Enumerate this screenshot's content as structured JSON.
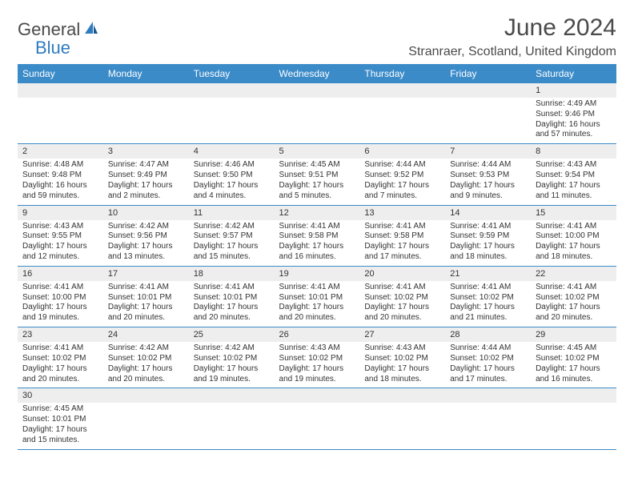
{
  "logo": {
    "text1": "General",
    "text2": "Blue"
  },
  "title": "June 2024",
  "location": "Stranraer, Scotland, United Kingdom",
  "colors": {
    "header_bg": "#3b8bc9",
    "header_fg": "#ffffff",
    "daynum_bg": "#eeeeee",
    "rule": "#3b8bc9",
    "text": "#333333",
    "logo_gray": "#4a4a4a",
    "logo_blue": "#2e7bc0"
  },
  "weekdays": [
    "Sunday",
    "Monday",
    "Tuesday",
    "Wednesday",
    "Thursday",
    "Friday",
    "Saturday"
  ],
  "weeks": [
    [
      null,
      null,
      null,
      null,
      null,
      null,
      {
        "n": "1",
        "sr": "4:49 AM",
        "ss": "9:46 PM",
        "dl": "16 hours and 57 minutes."
      }
    ],
    [
      {
        "n": "2",
        "sr": "4:48 AM",
        "ss": "9:48 PM",
        "dl": "16 hours and 59 minutes."
      },
      {
        "n": "3",
        "sr": "4:47 AM",
        "ss": "9:49 PM",
        "dl": "17 hours and 2 minutes."
      },
      {
        "n": "4",
        "sr": "4:46 AM",
        "ss": "9:50 PM",
        "dl": "17 hours and 4 minutes."
      },
      {
        "n": "5",
        "sr": "4:45 AM",
        "ss": "9:51 PM",
        "dl": "17 hours and 5 minutes."
      },
      {
        "n": "6",
        "sr": "4:44 AM",
        "ss": "9:52 PM",
        "dl": "17 hours and 7 minutes."
      },
      {
        "n": "7",
        "sr": "4:44 AM",
        "ss": "9:53 PM",
        "dl": "17 hours and 9 minutes."
      },
      {
        "n": "8",
        "sr": "4:43 AM",
        "ss": "9:54 PM",
        "dl": "17 hours and 11 minutes."
      }
    ],
    [
      {
        "n": "9",
        "sr": "4:43 AM",
        "ss": "9:55 PM",
        "dl": "17 hours and 12 minutes."
      },
      {
        "n": "10",
        "sr": "4:42 AM",
        "ss": "9:56 PM",
        "dl": "17 hours and 13 minutes."
      },
      {
        "n": "11",
        "sr": "4:42 AM",
        "ss": "9:57 PM",
        "dl": "17 hours and 15 minutes."
      },
      {
        "n": "12",
        "sr": "4:41 AM",
        "ss": "9:58 PM",
        "dl": "17 hours and 16 minutes."
      },
      {
        "n": "13",
        "sr": "4:41 AM",
        "ss": "9:58 PM",
        "dl": "17 hours and 17 minutes."
      },
      {
        "n": "14",
        "sr": "4:41 AM",
        "ss": "9:59 PM",
        "dl": "17 hours and 18 minutes."
      },
      {
        "n": "15",
        "sr": "4:41 AM",
        "ss": "10:00 PM",
        "dl": "17 hours and 18 minutes."
      }
    ],
    [
      {
        "n": "16",
        "sr": "4:41 AM",
        "ss": "10:00 PM",
        "dl": "17 hours and 19 minutes."
      },
      {
        "n": "17",
        "sr": "4:41 AM",
        "ss": "10:01 PM",
        "dl": "17 hours and 20 minutes."
      },
      {
        "n": "18",
        "sr": "4:41 AM",
        "ss": "10:01 PM",
        "dl": "17 hours and 20 minutes."
      },
      {
        "n": "19",
        "sr": "4:41 AM",
        "ss": "10:01 PM",
        "dl": "17 hours and 20 minutes."
      },
      {
        "n": "20",
        "sr": "4:41 AM",
        "ss": "10:02 PM",
        "dl": "17 hours and 20 minutes."
      },
      {
        "n": "21",
        "sr": "4:41 AM",
        "ss": "10:02 PM",
        "dl": "17 hours and 21 minutes."
      },
      {
        "n": "22",
        "sr": "4:41 AM",
        "ss": "10:02 PM",
        "dl": "17 hours and 20 minutes."
      }
    ],
    [
      {
        "n": "23",
        "sr": "4:41 AM",
        "ss": "10:02 PM",
        "dl": "17 hours and 20 minutes."
      },
      {
        "n": "24",
        "sr": "4:42 AM",
        "ss": "10:02 PM",
        "dl": "17 hours and 20 minutes."
      },
      {
        "n": "25",
        "sr": "4:42 AM",
        "ss": "10:02 PM",
        "dl": "17 hours and 19 minutes."
      },
      {
        "n": "26",
        "sr": "4:43 AM",
        "ss": "10:02 PM",
        "dl": "17 hours and 19 minutes."
      },
      {
        "n": "27",
        "sr": "4:43 AM",
        "ss": "10:02 PM",
        "dl": "17 hours and 18 minutes."
      },
      {
        "n": "28",
        "sr": "4:44 AM",
        "ss": "10:02 PM",
        "dl": "17 hours and 17 minutes."
      },
      {
        "n": "29",
        "sr": "4:45 AM",
        "ss": "10:02 PM",
        "dl": "17 hours and 16 minutes."
      }
    ],
    [
      {
        "n": "30",
        "sr": "4:45 AM",
        "ss": "10:01 PM",
        "dl": "17 hours and 15 minutes."
      },
      null,
      null,
      null,
      null,
      null,
      null
    ]
  ],
  "labels": {
    "sunrise": "Sunrise: ",
    "sunset": "Sunset: ",
    "daylight": "Daylight: "
  }
}
